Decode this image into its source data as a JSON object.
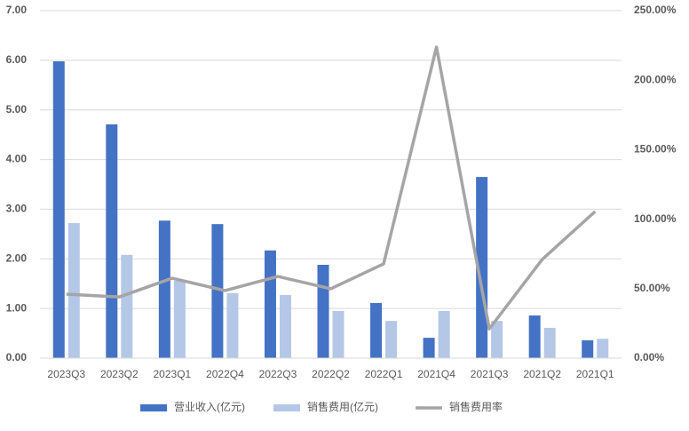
{
  "chart_data": {
    "type": "bar",
    "categories": [
      "2023Q3",
      "2023Q2",
      "2023Q1",
      "2022Q4",
      "2022Q3",
      "2022Q2",
      "2022Q1",
      "2021Q4",
      "2021Q3",
      "2021Q2",
      "2021Q1"
    ],
    "series": [
      {
        "name": "营业收入(亿元)",
        "color": "#4472c4",
        "values": [
          5.98,
          4.71,
          2.77,
          2.7,
          2.17,
          1.88,
          1.11,
          0.41,
          3.65,
          0.86,
          0.36
        ]
      },
      {
        "name": "销售费用(亿元)",
        "color": "#b4c7e7",
        "values": [
          2.72,
          2.08,
          1.56,
          1.31,
          1.27,
          0.95,
          0.75,
          0.95,
          0.75,
          0.61,
          0.39
        ]
      },
      {
        "name": "销售费用率",
        "color": "#a5a5a5",
        "type": "line",
        "axis": "y2",
        "values": [
          46,
          44,
          57.5,
          48.6,
          58.8,
          49.9,
          67.8,
          223.8,
          21.1,
          71,
          105.5
        ]
      }
    ],
    "ylim": [
      0,
      7
    ],
    "yticks": [
      {
        "value": 0,
        "label": "0.00"
      },
      {
        "value": 1,
        "label": "1.00"
      },
      {
        "value": 2,
        "label": "2.00"
      },
      {
        "value": 3,
        "label": "3.00"
      },
      {
        "value": 4,
        "label": "4.00"
      },
      {
        "value": 5,
        "label": "5.00"
      },
      {
        "value": 6,
        "label": "6.00"
      },
      {
        "value": 7,
        "label": "7.00"
      }
    ],
    "y2lim": [
      0,
      250
    ],
    "y2ticks": [
      {
        "value": 0,
        "label": "0.00%"
      },
      {
        "value": 50,
        "label": "50.00%"
      },
      {
        "value": 100,
        "label": "100.00%"
      },
      {
        "value": 150,
        "label": "150.00%"
      },
      {
        "value": 200,
        "label": "200.00%"
      },
      {
        "value": 250,
        "label": "250.00%"
      }
    ],
    "grid": true,
    "legend": "bottom"
  }
}
